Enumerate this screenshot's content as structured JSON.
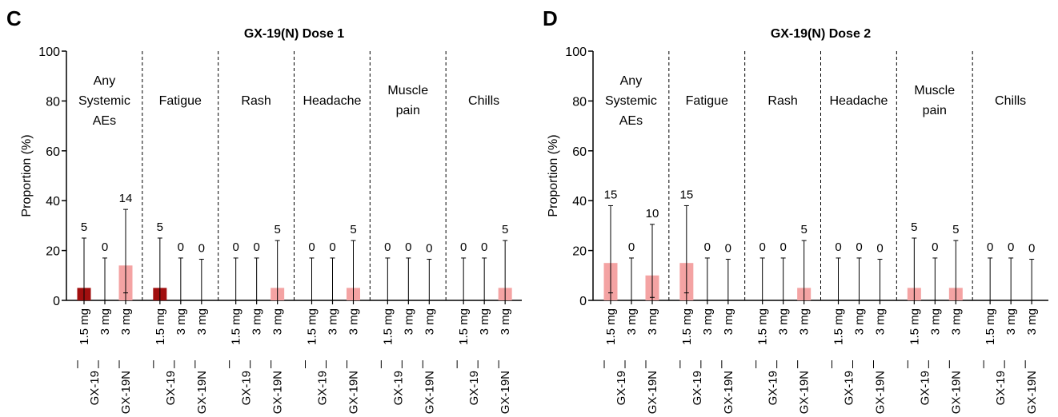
{
  "chart_data": [
    {
      "panel": "C",
      "type": "bar",
      "title": "GX-19(N) Dose 1",
      "ylabel": "Proportion (%)",
      "ylim": [
        0,
        100
      ],
      "yticks": [
        0,
        20,
        40,
        60,
        80,
        100
      ],
      "bar_labels": [
        "1.5 mg",
        "3 mg",
        "3 mg"
      ],
      "group_labels": [
        "GX-19",
        "GX-19N"
      ],
      "categories": [
        "Any Systemic AEs",
        "Fatigue",
        "Rash",
        "Headache",
        "Muscle pain",
        "Chills"
      ],
      "values": [
        [
          5,
          0,
          14
        ],
        [
          5,
          0,
          0
        ],
        [
          0,
          0,
          5
        ],
        [
          0,
          0,
          5
        ],
        [
          0,
          0,
          0
        ],
        [
          0,
          0,
          5
        ]
      ],
      "ci_upper": [
        [
          25,
          17,
          36.5
        ],
        [
          25,
          17,
          16.5
        ],
        [
          17,
          17,
          24
        ],
        [
          17,
          17,
          24
        ],
        [
          17,
          17,
          16.5
        ],
        [
          17,
          17,
          24
        ]
      ],
      "ci_lower": [
        [
          0.1,
          0,
          3
        ],
        [
          0.1,
          0,
          0
        ],
        [
          0,
          0,
          0.1
        ],
        [
          0,
          0,
          0.1
        ],
        [
          0,
          0,
          0
        ],
        [
          0,
          0,
          0.1
        ]
      ],
      "colors": [
        "#a10f0f",
        "#a10f0f",
        "#f4a3a3"
      ],
      "grid": false
    },
    {
      "panel": "D",
      "type": "bar",
      "title": "GX-19(N) Dose 2",
      "ylabel": "Proportion (%)",
      "ylim": [
        0,
        100
      ],
      "yticks": [
        0,
        20,
        40,
        60,
        80,
        100
      ],
      "bar_labels": [
        "1.5 mg",
        "3 mg",
        "3 mg"
      ],
      "group_labels": [
        "GX-19",
        "GX-19N"
      ],
      "categories": [
        "Any Systemic AEs",
        "Fatigue",
        "Rash",
        "Headache",
        "Muscle pain",
        "Chills"
      ],
      "values": [
        [
          15,
          0,
          10
        ],
        [
          15,
          0,
          0
        ],
        [
          0,
          0,
          5
        ],
        [
          0,
          0,
          0
        ],
        [
          5,
          0,
          5
        ],
        [
          0,
          0,
          0
        ]
      ],
      "ci_upper": [
        [
          38,
          17,
          30.5
        ],
        [
          38,
          17,
          16.5
        ],
        [
          17,
          17,
          24
        ],
        [
          17,
          17,
          16.5
        ],
        [
          25,
          17,
          24
        ],
        [
          17,
          17,
          16.5
        ]
      ],
      "ci_lower": [
        [
          3,
          0,
          1.2
        ],
        [
          3,
          0,
          0
        ],
        [
          0,
          0,
          0.1
        ],
        [
          0,
          0,
          0
        ],
        [
          0.1,
          0,
          0.1
        ],
        [
          0,
          0,
          0
        ]
      ],
      "colors": [
        "#f4a3a3",
        "#f4a3a3",
        "#f4a3a3"
      ],
      "grid": false
    }
  ]
}
